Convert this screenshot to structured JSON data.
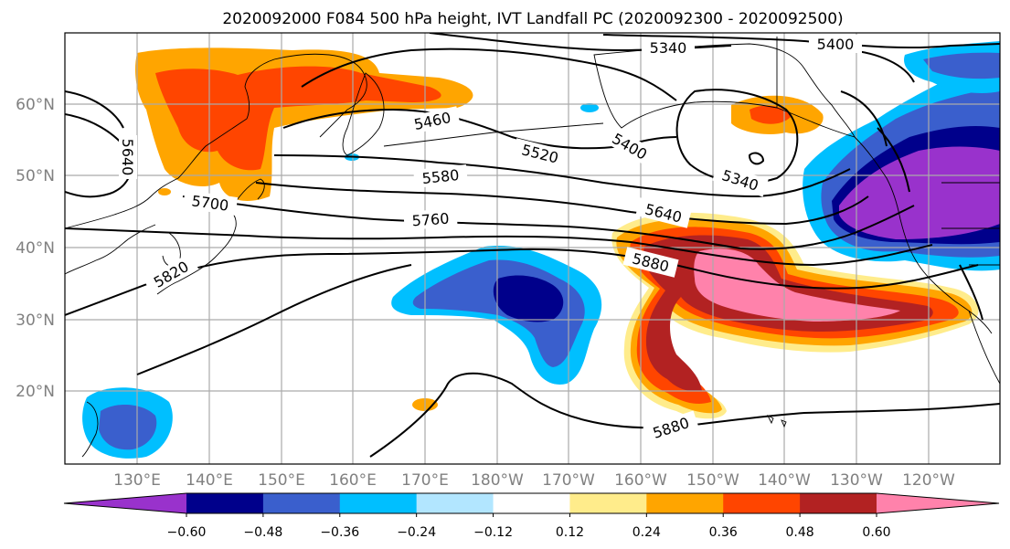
{
  "title": "2020092000 F084 500 hPa height, IVT Landfall PC (2020092300 - 2020092500)",
  "lon_ticks": [
    "130°E",
    "140°E",
    "150°E",
    "160°E",
    "170°E",
    "180°W",
    "170°W",
    "160°W",
    "150°W",
    "140°W",
    "130°W",
    "120°W"
  ],
  "lat_ticks": [
    "60°N",
    "50°N",
    "40°N",
    "30°N",
    "20°N"
  ],
  "colorbar": {
    "tick_labels": [
      "−0.60",
      "−0.48",
      "−0.36",
      "−0.24",
      "−0.12",
      "0.12",
      "0.24",
      "0.36",
      "0.48",
      "0.60"
    ],
    "colors": [
      "#9932cc",
      "#00008b",
      "#3a5fcd",
      "#00bfff",
      "#b2e6ff",
      "#ffffff",
      "#ffec8b",
      "#ffa500",
      "#ff4500",
      "#b22222",
      "#ff82ab"
    ]
  },
  "contour_labels": [
    "5340",
    "5400",
    "5460",
    "5520",
    "5580",
    "5640",
    "5700",
    "5760",
    "5820",
    "5880",
    "5400",
    "5340",
    "5640",
    "5880",
    "5880"
  ]
}
